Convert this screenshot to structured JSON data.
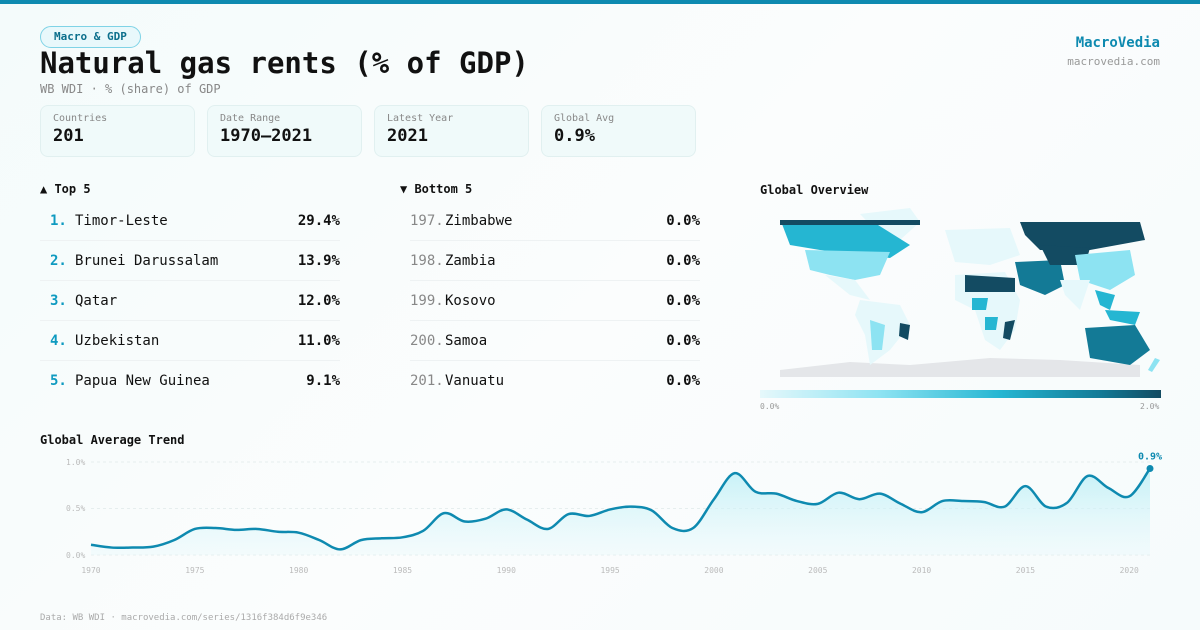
{
  "header": {
    "category": "Macro & GDP",
    "title": "Natural gas rents (% of GDP)",
    "subtitle": "WB WDI · % (share) of GDP",
    "brand": "MacroVedia",
    "brand_url": "macrovedia.com"
  },
  "stats": [
    {
      "label": "Countries",
      "value": "201"
    },
    {
      "label": "Date Range",
      "value": "1970–2021"
    },
    {
      "label": "Latest Year",
      "value": "2021"
    },
    {
      "label": "Global Avg",
      "value": "0.9%"
    }
  ],
  "top": {
    "title": "▲ Top 5",
    "items": [
      {
        "rank": "1.",
        "name": "Timor-Leste",
        "value": "29.4%"
      },
      {
        "rank": "2.",
        "name": "Brunei Darussalam",
        "value": "13.9%"
      },
      {
        "rank": "3.",
        "name": "Qatar",
        "value": "12.0%"
      },
      {
        "rank": "4.",
        "name": "Uzbekistan",
        "value": "11.0%"
      },
      {
        "rank": "5.",
        "name": "Papua New Guinea",
        "value": "9.1%"
      }
    ]
  },
  "bottom": {
    "title": "▼ Bottom 5",
    "items": [
      {
        "rank": "197.",
        "name": "Zimbabwe",
        "value": "0.0%"
      },
      {
        "rank": "198.",
        "name": "Zambia",
        "value": "0.0%"
      },
      {
        "rank": "199.",
        "name": "Kosovo",
        "value": "0.0%"
      },
      {
        "rank": "200.",
        "name": "Samoa",
        "value": "0.0%"
      },
      {
        "rank": "201.",
        "name": "Vanuatu",
        "value": "0.0%"
      }
    ]
  },
  "map": {
    "title": "Global Overview",
    "legend_min": "0.0%",
    "legend_max": "2.0%",
    "colors": [
      "#e6f8fb",
      "#8de3f2",
      "#25b6d2",
      "#137a96",
      "#134b62"
    ]
  },
  "footer": "Data: WB WDI · macrovedia.com/series/1316f384d6f9e346",
  "chart_data": {
    "type": "area",
    "title": "Global Average Trend",
    "x": [
      1970,
      1971,
      1972,
      1973,
      1974,
      1975,
      1976,
      1977,
      1978,
      1979,
      1980,
      1981,
      1982,
      1983,
      1984,
      1985,
      1986,
      1987,
      1988,
      1989,
      1990,
      1991,
      1992,
      1993,
      1994,
      1995,
      1996,
      1997,
      1998,
      1999,
      2000,
      2001,
      2002,
      2003,
      2004,
      2005,
      2006,
      2007,
      2008,
      2009,
      2010,
      2011,
      2012,
      2013,
      2014,
      2015,
      2016,
      2017,
      2018,
      2019,
      2020,
      2021
    ],
    "y": [
      0.11,
      0.08,
      0.08,
      0.09,
      0.16,
      0.28,
      0.29,
      0.27,
      0.28,
      0.25,
      0.24,
      0.16,
      0.06,
      0.16,
      0.18,
      0.19,
      0.26,
      0.45,
      0.36,
      0.39,
      0.49,
      0.38,
      0.28,
      0.44,
      0.42,
      0.49,
      0.52,
      0.48,
      0.29,
      0.29,
      0.6,
      0.88,
      0.68,
      0.66,
      0.58,
      0.55,
      0.67,
      0.6,
      0.66,
      0.55,
      0.46,
      0.58,
      0.58,
      0.57,
      0.52,
      0.74,
      0.52,
      0.56,
      0.85,
      0.72,
      0.63,
      0.93
    ],
    "ylim": [
      0,
      1.0
    ],
    "y_ticks": [
      "0.0%",
      "0.5%",
      "1.0%"
    ],
    "x_ticks": [
      "1970",
      "1975",
      "1980",
      "1985",
      "1990",
      "1995",
      "2000",
      "2005",
      "2010",
      "2015",
      "2020"
    ],
    "end_label": "0.9%",
    "grid": true,
    "color": "#0e8ab0"
  }
}
